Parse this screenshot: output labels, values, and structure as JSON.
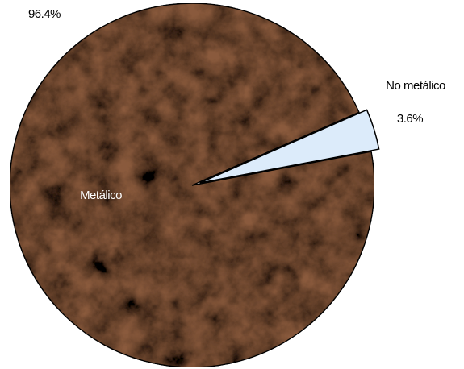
{
  "chart_data": {
    "type": "pie",
    "categories": [
      "Metálico",
      "No metálico"
    ],
    "values": [
      96.4,
      3.6
    ],
    "value_labels": [
      "96.4%",
      "3.6%"
    ],
    "colors": [
      "#8a5a3c",
      "#dcebfa"
    ]
  }
}
